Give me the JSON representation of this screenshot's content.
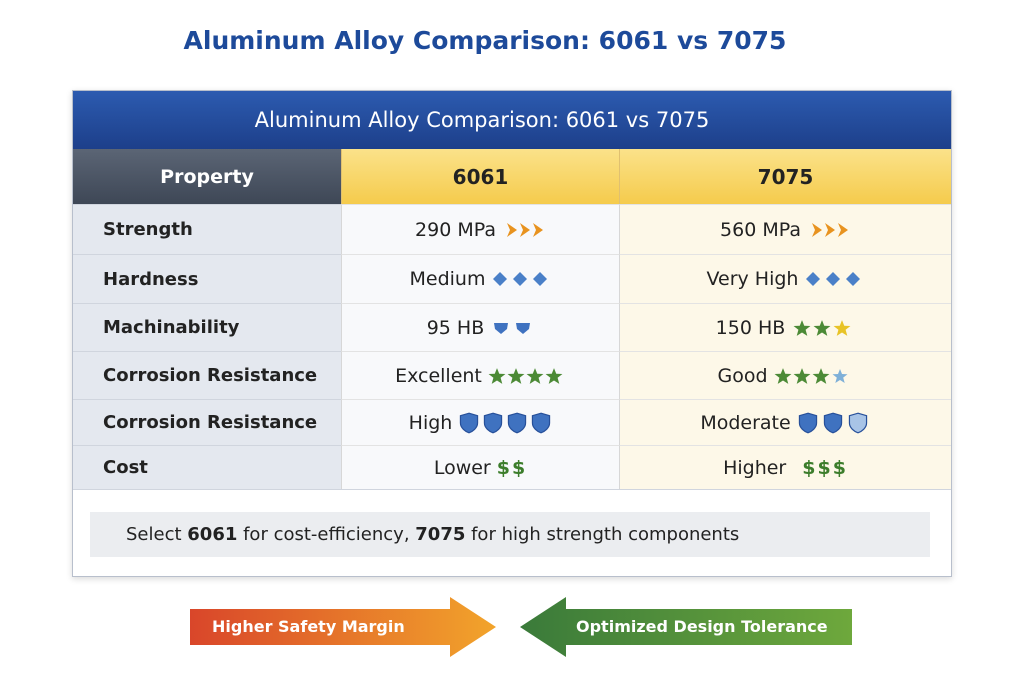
{
  "title": "Aluminum Alloy Comparison: 6061 vs 7075",
  "table": {
    "title": "Aluminum Alloy Comparison: 6061 vs 7075",
    "header": [
      "Property",
      "6061",
      "7075"
    ],
    "rows": [
      [
        "Strength",
        "290 MPa",
        "560 MPa"
      ],
      [
        "Hardness",
        "Medium",
        "Very High"
      ],
      [
        "Machinability",
        "95 HB",
        "150 HB"
      ],
      [
        "Corrosion Resistance",
        "Excellent",
        "Good"
      ],
      [
        "Corrosion Resistance",
        "High",
        "Moderate"
      ],
      [
        "Cost",
        "Lower",
        "Higher"
      ]
    ],
    "cost_symbols": [
      "$$",
      "$$$"
    ],
    "note": [
      "Select ",
      "6061",
      " for cost-efficiency, ",
      "7075",
      " for high strength components"
    ]
  },
  "arrows": [
    "Higher Safety Margin",
    "Optimized Design Tolerance"
  ]
}
